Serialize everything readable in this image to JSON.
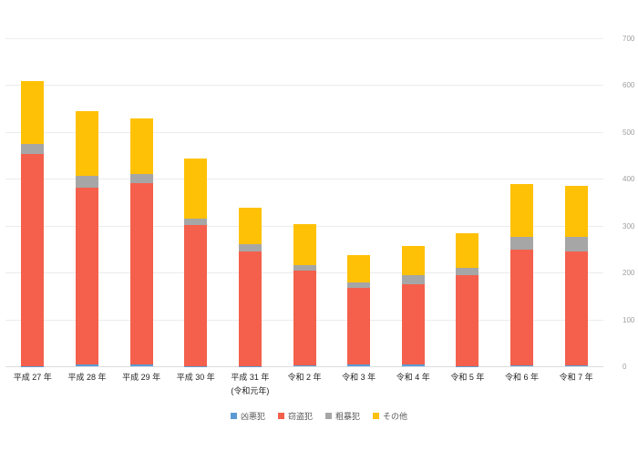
{
  "chart_data": {
    "type": "bar",
    "stacked": true,
    "title": "",
    "xlabel": "",
    "ylabel": "",
    "categories": [
      "平成 27 年",
      "平成 28 年",
      "平成 29 年",
      "平成 30 年",
      "平成 31 年",
      "令和 2 年",
      "令和 3 年",
      "令和 4 年",
      "令和 5 年",
      "令和 6 年",
      "令和 7 年"
    ],
    "category_sublabels": [
      "",
      "",
      "",
      "",
      "(令和元年)",
      "",
      "",
      "",
      "",
      "",
      ""
    ],
    "series": [
      {
        "name": "凶悪犯",
        "color": "#5b9bd5",
        "values": [
          1,
          4,
          4,
          1,
          1,
          2,
          4,
          4,
          1,
          2,
          2
        ]
      },
      {
        "name": "窃盗犯",
        "color": "#f4604c",
        "values": [
          453,
          377,
          386,
          300,
          245,
          202,
          164,
          172,
          193,
          246,
          243
        ]
      },
      {
        "name": "粗暴犯",
        "color": "#a6a6a6",
        "values": [
          21,
          26,
          21,
          15,
          14,
          12,
          11,
          18,
          17,
          28,
          31
        ]
      },
      {
        "name": "その他",
        "color": "#ffc105",
        "values": [
          134,
          137,
          117,
          128,
          78,
          88,
          58,
          63,
          72,
          112,
          110
        ]
      }
    ],
    "totals": [
      609,
      544,
      528,
      444,
      338,
      304,
      237,
      257,
      283,
      388,
      386
    ],
    "ylim": [
      0,
      700
    ],
    "yticks": [
      0,
      100,
      200,
      300,
      400,
      500,
      600,
      700
    ],
    "grid": true,
    "y_axis_side": "right",
    "legend_position": "bottom"
  },
  "colors": {
    "background": "#ffffff",
    "gridline": "#ececec",
    "axis_line": "#dcdcdc",
    "tick_label": "#9e9e9e",
    "category_label": "#1f1f1f",
    "legend_label": "#595959"
  }
}
